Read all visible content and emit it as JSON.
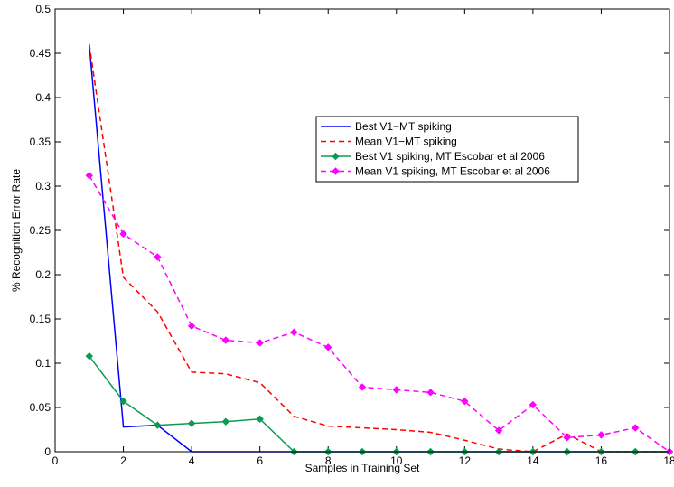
{
  "chart_data": {
    "type": "line",
    "title": "",
    "xlabel": "Samples in Training Set",
    "ylabel": "% Recognition Error Rate",
    "xlim": [
      0,
      18
    ],
    "ylim": [
      0,
      0.5
    ],
    "xticks": [
      0,
      2,
      4,
      6,
      8,
      10,
      12,
      14,
      16,
      18
    ],
    "yticks": [
      0,
      0.05,
      0.1,
      0.15,
      0.2,
      0.25,
      0.3,
      0.35,
      0.4,
      0.45,
      0.5
    ],
    "xtick_labels": [
      "0",
      "2",
      "4",
      "6",
      "8",
      "10",
      "12",
      "14",
      "16",
      "18"
    ],
    "ytick_labels": [
      "0",
      "0.05",
      "0.1",
      "0.15",
      "0.2",
      "0.25",
      "0.3",
      "0.35",
      "0.4",
      "0.45",
      "0.5"
    ],
    "grid": false,
    "legend_position": "upper-right-center",
    "series": [
      {
        "name": "Best V1−MT spiking",
        "color": "#0000ff",
        "linestyle": "solid",
        "marker": "none",
        "x": [
          1,
          2,
          3,
          4,
          5,
          6,
          7,
          8,
          9,
          10,
          11,
          12,
          13,
          14,
          15,
          16,
          17,
          18
        ],
        "y": [
          0.46,
          0.028,
          0.03,
          0.0,
          0.0,
          0.0,
          0.0,
          0.0,
          0.0,
          0.0,
          0.0,
          0.0,
          0.0,
          0.0,
          0.0,
          0.0,
          0.0,
          0.0
        ]
      },
      {
        "name": "Mean V1−MT spiking",
        "color": "#ff0000",
        "linestyle": "dashed",
        "marker": "none",
        "x": [
          1,
          2,
          3,
          4,
          5,
          6,
          7,
          8,
          9,
          10,
          11,
          12,
          13,
          14,
          15,
          16,
          17,
          18
        ],
        "y": [
          0.46,
          0.197,
          0.158,
          0.09,
          0.088,
          0.078,
          0.04,
          0.029,
          0.027,
          0.025,
          0.022,
          0.013,
          0.003,
          0.0,
          0.02,
          0.0,
          0.0,
          0.0
        ]
      },
      {
        "name": "Best V1 spiking, MT Escobar et al 2006",
        "color": "#0a9a50",
        "linestyle": "solid",
        "marker": "diamond",
        "x": [
          1,
          2,
          3,
          4,
          5,
          6,
          7,
          8,
          9,
          10,
          11,
          12,
          13,
          14,
          15,
          16,
          17,
          18
        ],
        "y": [
          0.108,
          0.057,
          0.03,
          0.032,
          0.034,
          0.037,
          0.0,
          0.0,
          0.0,
          0.0,
          0.0,
          0.0,
          0.0,
          0.0,
          0.0,
          0.0,
          0.0,
          0.0
        ]
      },
      {
        "name": "Mean V1 spiking, MT Escobar et al 2006",
        "color": "#ff00ff",
        "linestyle": "dashed",
        "marker": "diamond",
        "x": [
          1,
          2,
          3,
          4,
          5,
          6,
          7,
          8,
          9,
          10,
          11,
          12,
          13,
          14,
          15,
          16,
          17,
          18
        ],
        "y": [
          0.312,
          0.246,
          0.22,
          0.142,
          0.126,
          0.123,
          0.135,
          0.118,
          0.073,
          0.07,
          0.067,
          0.057,
          0.024,
          0.053,
          0.016,
          0.019,
          0.027,
          0.0
        ]
      }
    ]
  }
}
